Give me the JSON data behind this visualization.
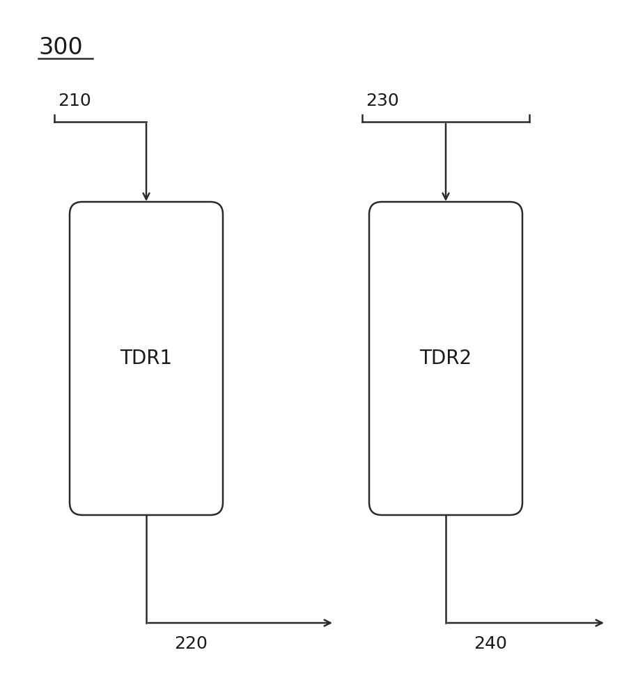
{
  "title": "300",
  "background_color": "#ffffff",
  "line_color": "#2a2a2a",
  "text_color": "#1a1a1a",
  "box1": {
    "label": "TDR1",
    "label_fontsize": 20
  },
  "box2": {
    "label": "TDR2",
    "label_fontsize": 20
  },
  "label_210": "210",
  "label_220": "220",
  "label_230": "230",
  "label_240": "240",
  "label_fontsize": 18,
  "title_fontsize": 24,
  "figsize": [
    9.16,
    10.0
  ],
  "dpi": 100
}
